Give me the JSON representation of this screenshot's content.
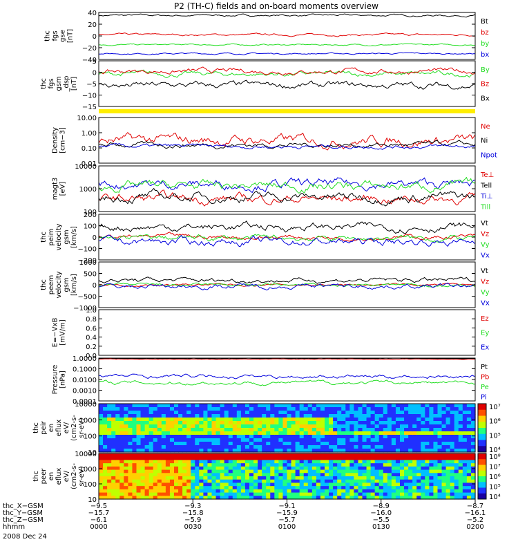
{
  "title": "P2 (TH-C) fields and on-board moments overview",
  "date": "2008 Dec 24",
  "colors": {
    "black": "#000000",
    "red": "#e00000",
    "green": "#22dd22",
    "blue": "#0000dd",
    "yellow": "#ffee00"
  },
  "chart_data": [
    {
      "type": "line",
      "id": "p1",
      "ylabel": [
        "thc",
        "fgs",
        "gse",
        "[nT]"
      ],
      "yticks": [
        "40",
        "20",
        "0",
        "−20",
        "−40"
      ],
      "ylim": [
        -40,
        40
      ],
      "series": [
        {
          "name": "Bt",
          "color": "#000000",
          "level": 35,
          "noise": 2
        },
        {
          "name": "bz",
          "color": "#e00000",
          "level": 2,
          "noise": 2
        },
        {
          "name": "by",
          "color": "#22dd22",
          "level": -15,
          "noise": 1.5
        },
        {
          "name": "bx",
          "color": "#0000dd",
          "level": -30,
          "noise": 1.5
        }
      ]
    },
    {
      "type": "line",
      "id": "p2",
      "ylabel": [
        "thc",
        "fgs",
        "gsm",
        "_dsp",
        "[nT]"
      ],
      "yticks": [
        "5",
        "0",
        "−5",
        "−10",
        "−15"
      ],
      "ylim": [
        -18,
        6
      ],
      "series": [
        {
          "name": "By",
          "color": "#22dd22",
          "level": -1,
          "noise": 1.5
        },
        {
          "name": "Bz",
          "color": "#e00000",
          "level": 0.5,
          "noise": 1.5
        },
        {
          "name": "Bx",
          "color": "#000000",
          "level": -7,
          "noise": 2
        }
      ]
    },
    {
      "type": "line",
      "id": "p3",
      "ylabel": [
        "Density",
        "[cm−3]"
      ],
      "yticks": [
        "10.00",
        "1.00",
        "0.10",
        "0.01"
      ],
      "ylim": [
        -2,
        1
      ],
      "log": true,
      "series": [
        {
          "name": "Ne",
          "color": "#e00000",
          "level": -0.5,
          "noise": 0.4
        },
        {
          "name": "Ni",
          "color": "#000000",
          "level": -0.8,
          "noise": 0.2
        },
        {
          "name": "Npot",
          "color": "#0000dd",
          "level": -0.9,
          "noise": 0.15
        }
      ]
    },
    {
      "type": "line",
      "id": "p4",
      "ylabel": [
        "magt3",
        "[eV]"
      ],
      "yticks": [
        "10000",
        "1000",
        "100"
      ],
      "ylim": [
        1.5,
        4
      ],
      "log": true,
      "series": [
        {
          "name": "Te⊥",
          "color": "#e00000",
          "level": 2.2,
          "noise": 0.3
        },
        {
          "name": "Tell",
          "color": "#000000",
          "level": 2.3,
          "noise": 0.3
        },
        {
          "name": "Ti⊥",
          "color": "#0000dd",
          "level": 3,
          "noise": 0.3
        },
        {
          "name": "Till",
          "color": "#22dd22",
          "level": 2.9,
          "noise": 0.3
        }
      ]
    },
    {
      "type": "line",
      "id": "p5",
      "ylabel": [
        "thc",
        "peim",
        "velocity",
        "gsm",
        "[km/s]"
      ],
      "yticks": [
        "200",
        "100",
        "0",
        "−100",
        "−200"
      ],
      "ylim": [
        -200,
        200
      ],
      "series": [
        {
          "name": "Vt",
          "color": "#000000",
          "level": 90,
          "noise": 40
        },
        {
          "name": "Vz",
          "color": "#e00000",
          "level": 0,
          "noise": 25
        },
        {
          "name": "Vy",
          "color": "#22dd22",
          "level": -10,
          "noise": 30
        },
        {
          "name": "Vx",
          "color": "#0000dd",
          "level": -40,
          "noise": 40
        }
      ]
    },
    {
      "type": "line",
      "id": "p6",
      "ylabel": [
        "thc",
        "peem",
        "velocity",
        "gsm",
        "[km/s]"
      ],
      "yticks": [
        "1000",
        "500",
        "0",
        "−500",
        "−1000"
      ],
      "ylim": [
        -1000,
        1000
      ],
      "series": [
        {
          "name": "Vt",
          "color": "#000000",
          "level": 200,
          "noise": 120
        },
        {
          "name": "Vz",
          "color": "#e00000",
          "level": 0,
          "noise": 60
        },
        {
          "name": "Vy",
          "color": "#22dd22",
          "level": -20,
          "noise": 80
        },
        {
          "name": "Vx",
          "color": "#0000dd",
          "level": -60,
          "noise": 120
        }
      ]
    },
    {
      "type": "line",
      "id": "p7",
      "ylabel": [
        "E=−VxB",
        "[mV/m]"
      ],
      "yticks": [
        "1.0",
        "0.8",
        "0.6",
        "0.4",
        "0.2",
        "0.0"
      ],
      "ylim": [
        0,
        1
      ],
      "series": [
        {
          "name": "Ez",
          "color": "#e00000"
        },
        {
          "name": "Ey",
          "color": "#22dd22"
        },
        {
          "name": "Ex",
          "color": "#0000dd"
        }
      ]
    },
    {
      "type": "line",
      "id": "p8",
      "ylabel": [
        "Pressure",
        "[nPa]"
      ],
      "yticks": [
        "1.0000",
        "0.1000",
        "0.0100",
        "0.0010",
        "0.0001"
      ],
      "ylim": [
        -4,
        0
      ],
      "log": true,
      "series": [
        {
          "name": "Pt",
          "color": "#000000",
          "level": -0.05,
          "noise": 0.03
        },
        {
          "name": "Pb",
          "color": "#e00000",
          "level": -0.1,
          "noise": 0.03
        },
        {
          "name": "Pe",
          "color": "#22dd22",
          "level": -2.3,
          "noise": 0.2
        },
        {
          "name": "Pi",
          "color": "#0000dd",
          "level": -1.7,
          "noise": 0.2
        }
      ]
    },
    {
      "type": "heatmap",
      "id": "p9",
      "ylabel": [
        "thc",
        "peir",
        "en",
        "eflux",
        "eV/",
        "(cm2-s-",
        "sr-eV)"
      ],
      "yticks": [
        "10000",
        "1000",
        "100",
        "10"
      ],
      "colorbar": {
        "ticks": [
          "10⁷",
          "10⁶",
          "10⁵",
          "10⁴"
        ]
      }
    },
    {
      "type": "heatmap",
      "id": "p10",
      "ylabel": [
        "thc",
        "peer",
        "en",
        "eflux",
        "eV/",
        "(cm2-s-",
        "sr-eV)"
      ],
      "yticks": [
        "10000",
        "1000",
        "100",
        "10"
      ],
      "colorbar": {
        "ticks": [
          "10⁸",
          "10⁷",
          "10⁶",
          "10⁵",
          "10⁴"
        ]
      }
    }
  ],
  "xaxis": {
    "row_labels": [
      "thc_X−GSM",
      "thc_Y−GSM",
      "thc_Z−GSM",
      "hhmm"
    ],
    "ticks": [
      [
        "−9.5",
        "−15.7",
        "−6.1",
        "0000"
      ],
      [
        "−9.3",
        "−15.8",
        "−5.9",
        "0030"
      ],
      [
        "−9.1",
        "−15.9",
        "−5.7",
        "0100"
      ],
      [
        "−8.9",
        "−16.0",
        "−5.5",
        "0130"
      ],
      [
        "−8.7",
        "−16.1",
        "−5.2",
        "0200"
      ]
    ]
  }
}
